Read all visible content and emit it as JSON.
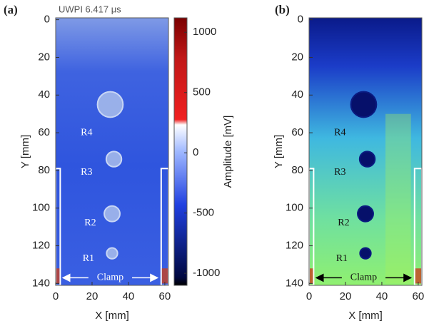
{
  "chart_data": [
    {
      "type": "image",
      "panel_label": "(a)",
      "subtitle": "UWPI 6.417 μs",
      "xlabel": "X [mm]",
      "ylabel": "Y [mm]",
      "xlim": [
        0,
        62
      ],
      "ylim": [
        141,
        -1
      ],
      "xticks": [
        0,
        20,
        40,
        60
      ],
      "yticks": [
        0,
        20,
        40,
        60,
        80,
        100,
        120,
        140
      ],
      "annotations": [
        "R4",
        "R3",
        "R2",
        "R1",
        "Clamp"
      ],
      "colorbar": {
        "label": "Amplitude [mV]",
        "lim": [
          -1100,
          1120
        ],
        "ticks": [
          1000,
          500,
          0,
          -500,
          -1000
        ]
      }
    },
    {
      "type": "image",
      "panel_label": "(b)",
      "xlabel": "X [mm]",
      "ylabel": "Y [mm]",
      "xlim": [
        0,
        62
      ],
      "ylim": [
        141,
        -1
      ],
      "xticks": [
        0,
        20,
        40,
        60
      ],
      "yticks": [
        0,
        20,
        40,
        60,
        80,
        100,
        120,
        140
      ],
      "annotations": [
        "R4",
        "R3",
        "R2",
        "R1",
        "Clamp"
      ]
    }
  ]
}
